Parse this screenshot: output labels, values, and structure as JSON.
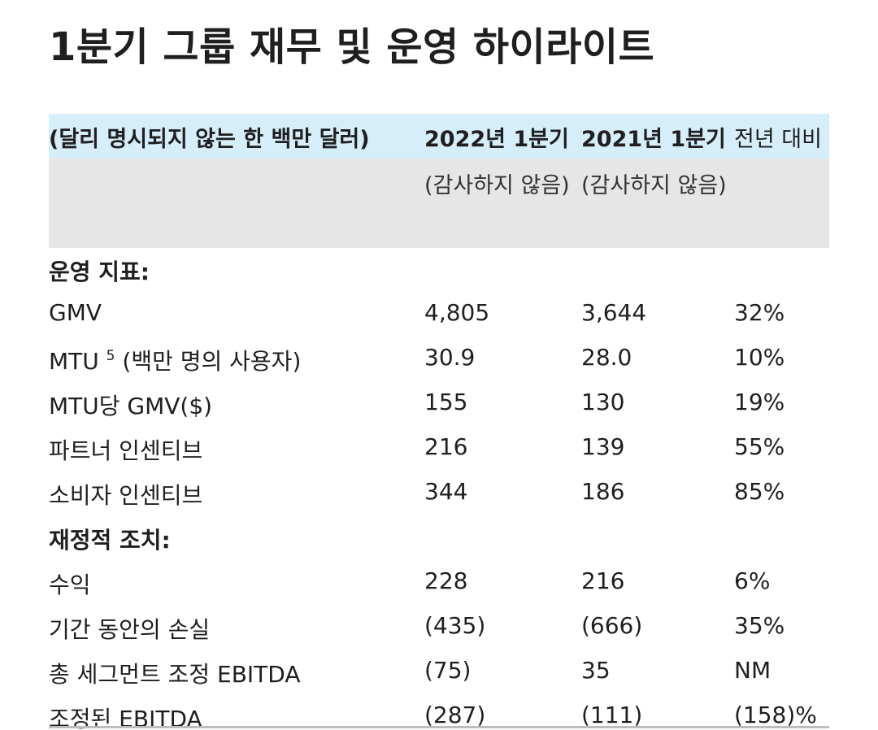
{
  "title": "1분기 그룹 재무 및 운영 하이라이트",
  "header": {
    "units": "(달리 명시되지 않는 한 백만 달러)",
    "col_2022": "2022년 1분기",
    "col_2021": "2021년 1분기",
    "col_yoy": "전년 대비",
    "unaudited_2022": "(감사하지 않음)",
    "unaudited_2021": "(감사하지 않음)"
  },
  "sections": {
    "operating": "운영 지표:",
    "financial": "재정적 조치:"
  },
  "rows": [
    {
      "label": "GMV",
      "q1_2022": "4,805",
      "q1_2021": "3,644",
      "yoy": "32%"
    },
    {
      "label": "MTU",
      "sup": "5",
      "label_rest": " (백만 명의 사용자)",
      "q1_2022": "30.9",
      "q1_2021": "28.0",
      "yoy": "10%"
    },
    {
      "label": "MTU당 GMV($)",
      "q1_2022": "155",
      "q1_2021": "130",
      "yoy": "19%"
    },
    {
      "label": "파트너 인센티브",
      "q1_2022": "216",
      "q1_2021": "139",
      "yoy": "55%"
    },
    {
      "label": "소비자 인센티브",
      "q1_2022": "344",
      "q1_2021": "186",
      "yoy": "85%"
    },
    {
      "label": "수익",
      "q1_2022": "228",
      "q1_2021": "216",
      "yoy": "6%"
    },
    {
      "label": "기간 동안의 손실",
      "q1_2022": "(435)",
      "q1_2021": "(666)",
      "yoy": "35%"
    },
    {
      "label": "총 세그먼트 조정 EBITDA",
      "q1_2022": "(75)",
      "q1_2021": "35",
      "yoy": "NM"
    },
    {
      "label": "조정된 EBITDA",
      "q1_2022": "(287)",
      "q1_2021": "(111)",
      "yoy": "(158)%"
    }
  ]
}
